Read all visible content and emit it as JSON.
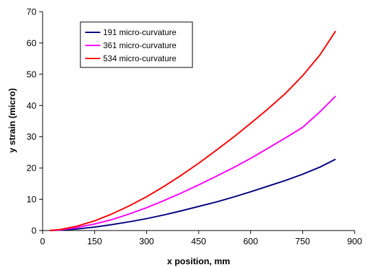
{
  "chart_data": {
    "type": "line",
    "title": "",
    "xlabel": "x position, mm",
    "ylabel": "y strain (micro)",
    "xlim": [
      0,
      900
    ],
    "ylim": [
      0,
      70
    ],
    "x_ticks": [
      0,
      150,
      300,
      450,
      600,
      750,
      900
    ],
    "y_ticks": [
      0,
      10,
      20,
      30,
      40,
      50,
      60,
      70
    ],
    "grid": false,
    "legend_position": "top-left",
    "x": [
      20,
      50,
      100,
      150,
      200,
      250,
      300,
      350,
      400,
      450,
      500,
      550,
      600,
      650,
      700,
      750,
      800,
      845
    ],
    "series": [
      {
        "name": "191 micro-curvature",
        "color": "#000080",
        "values": [
          0,
          0.1,
          0.5,
          1.1,
          1.9,
          2.8,
          3.8,
          5.0,
          6.3,
          7.7,
          9.1,
          10.7,
          12.4,
          14.2,
          16.0,
          18.0,
          20.3,
          22.8
        ]
      },
      {
        "name": "361 micro-curvature",
        "color": "#FF00FF",
        "values": [
          0,
          0.2,
          1.0,
          2.1,
          3.5,
          5.3,
          7.3,
          9.6,
          12.0,
          14.6,
          17.3,
          20.1,
          23.1,
          26.3,
          29.6,
          33.0,
          38.0,
          43.0
        ]
      },
      {
        "name": "534 micro-curvature",
        "color": "#FF0000",
        "values": [
          0,
          0.3,
          1.4,
          3.1,
          5.3,
          7.9,
          10.8,
          14.1,
          17.7,
          21.5,
          25.6,
          29.8,
          34.3,
          38.9,
          43.8,
          49.5,
          56.2,
          63.8
        ]
      }
    ]
  }
}
